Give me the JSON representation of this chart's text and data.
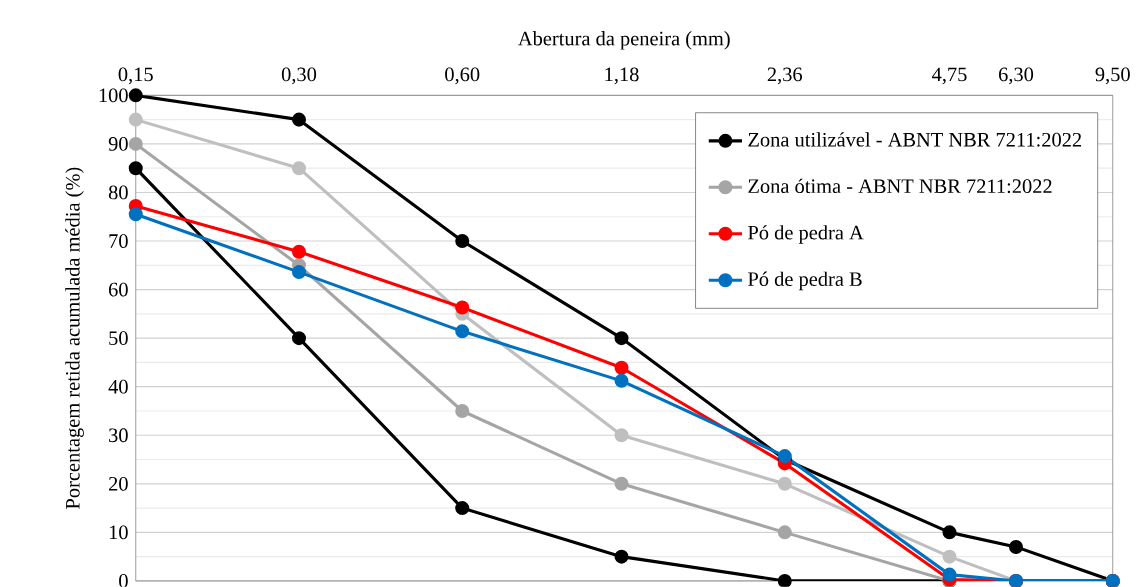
{
  "chart_data": {
    "type": "line",
    "xlabel": "Abertura da peneira (mm)",
    "ylabel": "Porcentagem retida acumulada média (%)",
    "x": [
      0.15,
      0.3,
      0.6,
      1.18,
      2.36,
      4.75,
      6.3,
      9.5
    ],
    "series": [
      {
        "name": "Zona utilizável - ABNT NBR 7211:2022",
        "color": "#000000",
        "values": [
          100,
          95,
          70,
          50,
          25,
          10,
          7,
          0
        ]
      },
      {
        "color": "#000000",
        "values": [
          85,
          50,
          15,
          5,
          0,
          0,
          0,
          0
        ]
      },
      {
        "color": "#bfbfbf",
        "values": [
          95,
          85,
          55,
          30,
          20,
          5,
          0,
          0
        ]
      },
      {
        "name": "Zona ótima - ABNT NBR 7211:2022",
        "color": "#a5a5a5",
        "values": [
          90,
          65,
          35,
          20,
          10,
          0,
          0,
          0
        ]
      },
      {
        "name": "Pó de pedra A",
        "color": "#ff0000",
        "values": [
          77.2,
          67.8,
          56.3,
          43.9,
          24.2,
          0.3,
          0,
          0
        ]
      },
      {
        "name": "Pó de pedra B",
        "color": "#0070c0",
        "values": [
          75.5,
          63.6,
          51.4,
          41.2,
          25.7,
          1.3,
          0,
          0
        ]
      }
    ],
    "log": "x",
    "xlim": [
      0.15,
      9.5
    ],
    "ylim": [
      0,
      100
    ],
    "xticks": [
      {
        "value": 0.15,
        "label": "0,15"
      },
      {
        "value": 0.3,
        "label": "0,30"
      },
      {
        "value": 0.6,
        "label": "0,60"
      },
      {
        "value": 1.18,
        "label": "1,18"
      },
      {
        "value": 2.36,
        "label": "2,36"
      },
      {
        "value": 4.75,
        "label": "4,75"
      },
      {
        "value": 6.3,
        "label": "6,30"
      },
      {
        "value": 9.5,
        "label": "9,50"
      }
    ],
    "yticks": [
      0,
      10,
      20,
      30,
      40,
      50,
      60,
      70,
      80,
      90,
      100
    ],
    "grid": "y",
    "legend": "top right",
    "marker": "circle"
  }
}
